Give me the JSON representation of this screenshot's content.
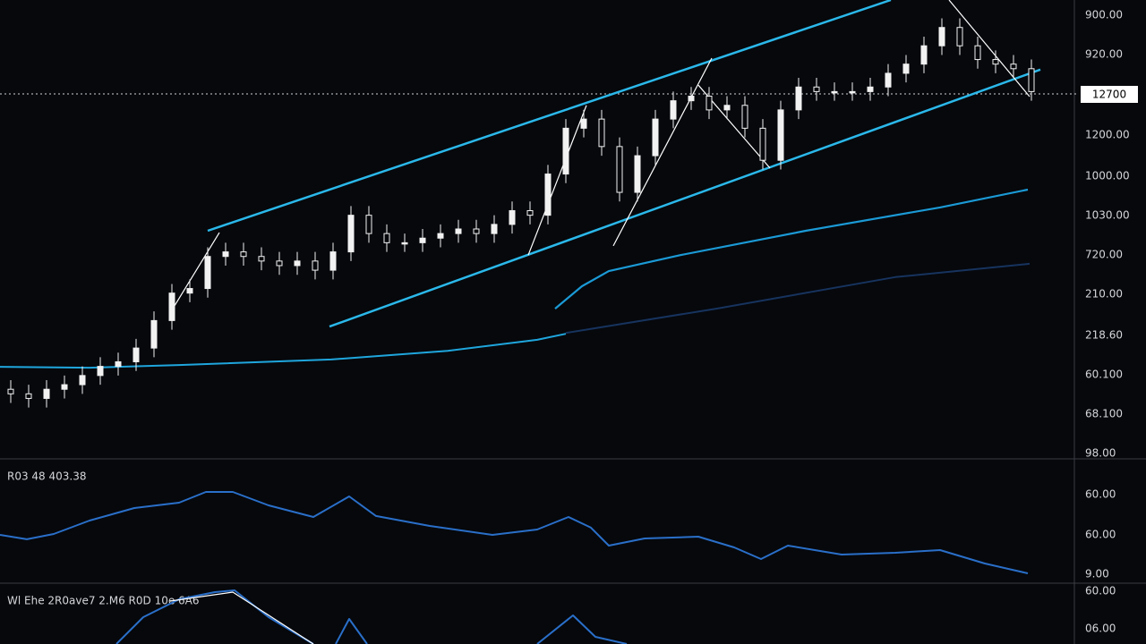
{
  "chart_data": [
    {
      "type": "candlestick",
      "xlim": [
        -0.6,
        63.4
      ],
      "ylim": [
        0,
        100
      ],
      "open": [
        15,
        14,
        13,
        15,
        16,
        18,
        20,
        21,
        24,
        30,
        36,
        37,
        44,
        45,
        44,
        43,
        42,
        43,
        41,
        45,
        53,
        49,
        47,
        47,
        48,
        49,
        50,
        49,
        51,
        54,
        53,
        62,
        72,
        74,
        68,
        58,
        66,
        74,
        78,
        79,
        76,
        77,
        72,
        65,
        76,
        81,
        80,
        80,
        80,
        81,
        84,
        86,
        90,
        94,
        90,
        87,
        86,
        85
      ],
      "high": [
        17,
        16,
        17,
        18,
        20,
        22,
        23,
        26,
        32,
        38,
        39,
        46,
        47,
        47,
        46,
        45,
        45,
        45,
        47,
        55,
        55,
        51,
        49,
        50,
        51,
        52,
        52,
        53,
        56,
        56,
        64,
        74,
        76,
        76,
        70,
        68,
        76,
        80,
        81,
        81,
        79,
        79,
        74,
        78,
        83,
        83,
        82,
        82,
        83,
        86,
        88,
        92,
        96,
        96,
        92,
        89,
        88,
        87
      ],
      "low": [
        12,
        11,
        11,
        13,
        14,
        16,
        18,
        19,
        22,
        28,
        34,
        35,
        42,
        42,
        41,
        40,
        40,
        39,
        39,
        43,
        47,
        45,
        45,
        45,
        46,
        47,
        47,
        47,
        49,
        51,
        51,
        60,
        70,
        66,
        56,
        56,
        64,
        72,
        76,
        74,
        74,
        70,
        63,
        63,
        74,
        78,
        78,
        78,
        78,
        79,
        82,
        84,
        88,
        88,
        85,
        84,
        83,
        78
      ],
      "close": [
        14,
        13,
        15,
        16,
        18,
        20,
        21,
        24,
        30,
        36,
        37,
        44,
        45,
        44,
        43,
        42,
        43,
        41,
        45,
        53,
        49,
        47,
        47,
        48,
        49,
        50,
        49,
        51,
        54,
        53,
        62,
        72,
        74,
        68,
        58,
        66,
        74,
        78,
        79,
        76,
        77,
        72,
        65,
        76,
        81,
        80,
        80,
        80,
        81,
        84,
        86,
        90,
        94,
        90,
        87,
        86,
        85,
        80
      ],
      "candle_color": "#f2f2f2",
      "series": [
        {
          "color": "#1fa6dd",
          "width": 2,
          "x": [
            -0.6,
            4.4,
            9.4,
            17.9,
            24.4,
            29.4,
            31
          ],
          "values": [
            19.9,
            19.7,
            20.3,
            21.5,
            23.4,
            25.8,
            27.1
          ]
        },
        {
          "color": "#1b9ad6",
          "width": 2.2,
          "x": [
            30.4,
            31.9,
            33.4,
            37.4,
            44.4,
            51.9,
            56.8
          ],
          "values": [
            32.6,
            37.5,
            40.8,
            44.3,
            49.6,
            54.7,
            58.6
          ]
        },
        {
          "color": "#17335e",
          "width": 2,
          "x": [
            31,
            39.4,
            49.4,
            56.9
          ],
          "values": [
            27.3,
            32.6,
            39.5,
            42.4
          ]
        },
        {
          "color": "#2bb8ea",
          "width": 2.5,
          "x": [
            11,
            49.15
          ],
          "values": [
            49.6,
            100
          ]
        },
        {
          "color": "#2bb8ea",
          "width": 2.5,
          "x": [
            17.8,
            57.5
          ],
          "values": [
            28.7,
            84.8
          ]
        },
        {
          "color": "#ffffff",
          "width": 1.2,
          "x": [
            9.05,
            11.65
          ],
          "values": [
            32.6,
            49.2
          ]
        },
        {
          "color": "#ffffff",
          "width": 1.2,
          "x": [
            28.9,
            32.15
          ],
          "values": [
            44.3,
            77
          ]
        },
        {
          "color": "#ffffff",
          "width": 1.2,
          "x": [
            33.65,
            39.15
          ],
          "values": [
            46.3,
            87.3
          ]
        },
        {
          "color": "#ffffff",
          "width": 1.2,
          "x": [
            38.4,
            42.4
          ],
          "values": [
            81.4,
            63.3
          ]
        },
        {
          "color": "#ffffff",
          "width": 1.2,
          "x": [
            52.4,
            56.9
          ],
          "values": [
            100,
            78.9
          ]
        }
      ],
      "axis_labels": [
        "900.00",
        "920.00",
        "1200.00",
        "1000.00",
        "1030.00",
        "720.00",
        "210.00",
        "218.60",
        "60.100",
        "68.100",
        "98.00"
      ],
      "price_tag": "12700"
    },
    {
      "type": "line",
      "title": "R03 48 403.38",
      "xlim": [
        -0.6,
        63.4
      ],
      "ylim": [
        0,
        100
      ],
      "series": [
        {
          "color": "#2a6fc9",
          "width": 2,
          "x": [
            -0.6,
            0.9,
            2.4,
            4.4,
            6.9,
            9.4,
            10.9,
            12.4,
            14.4,
            16.9,
            18.9,
            20.4,
            23.4,
            26.9,
            29.4,
            31.15,
            32.4,
            33.4,
            35.4,
            38.4,
            40.4,
            41.9,
            43.4,
            46.4,
            49.4,
            51.9,
            54.4,
            56.8
          ],
          "values": [
            40,
            36.2,
            40.8,
            52.3,
            63.1,
            67.7,
            76.9,
            76.9,
            65.4,
            55.4,
            73.1,
            56.2,
            47.7,
            40,
            44.6,
            55.4,
            46.2,
            30.8,
            36.9,
            38.5,
            29.2,
            19.2,
            30.8,
            23.1,
            24.6,
            26.9,
            15.4,
            6.9
          ]
        }
      ],
      "axis_labels": [
        "60.00",
        "60.00",
        "9.00"
      ]
    },
    {
      "type": "line",
      "title": "Wl Ehe 2R0ave7 2.M6 R0D 10e 6A6",
      "xlim": [
        -0.6,
        63.4
      ],
      "ylim": [
        0,
        100
      ],
      "series": [
        {
          "color": "#2a6fc9",
          "width": 2,
          "x": [
            5.9,
            7.4,
            9.4,
            11.4,
            12.5,
            14.4,
            16.9,
            18,
            18.15,
            18.9,
            19.9,
            25,
            29.4,
            31.4,
            32.65,
            34.4
          ],
          "values": [
            0,
            50,
            83.3,
            96.7,
            100,
            50,
            0,
            null,
            0,
            46.7,
            0,
            null,
            0,
            53.3,
            13.3,
            0
          ]
        },
        {
          "color": "#ffffff",
          "width": 1.2,
          "x": [
            8.9,
            12.4,
            16.9
          ],
          "values": [
            80,
            96.7,
            0
          ]
        }
      ],
      "axis_labels": [
        "60.00",
        "06.00"
      ]
    }
  ]
}
